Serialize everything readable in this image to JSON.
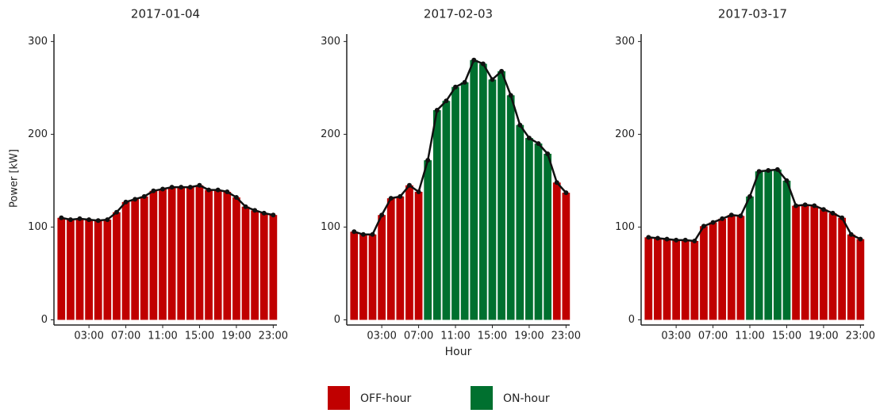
{
  "chart_data": [
    {
      "type": "bar",
      "title": "2017-01-04",
      "y_label": "Power [kW]",
      "categories": [
        null,
        null,
        null,
        "03:00",
        null,
        null,
        null,
        "07:00",
        null,
        null,
        null,
        "11:00",
        null,
        null,
        null,
        "15:00",
        null,
        null,
        null,
        "19:00",
        null,
        null,
        null,
        "23:00"
      ],
      "series": [
        {
          "name": "OFF-hour",
          "color": "#c00000",
          "values": [
            110,
            108,
            109,
            108,
            107,
            108,
            116,
            127,
            130,
            133,
            139,
            141,
            143,
            143,
            143,
            145,
            140,
            140,
            138,
            132,
            122,
            118,
            115,
            113
          ]
        },
        {
          "name": "ON-hour",
          "color": "#00702f",
          "values": [
            null,
            null,
            null,
            null,
            null,
            null,
            null,
            null,
            null,
            null,
            null,
            null,
            null,
            null,
            null,
            null,
            null,
            null,
            null,
            null,
            null,
            null,
            null,
            null
          ]
        }
      ],
      "ylim": [
        -3,
        308
      ],
      "yticks": [
        0,
        100,
        200,
        300
      ]
    },
    {
      "type": "bar",
      "title": "2017-02-03",
      "x_label": "Hour",
      "categories": [
        null,
        null,
        null,
        "03:00",
        null,
        null,
        null,
        "07:00",
        null,
        null,
        null,
        "11:00",
        null,
        null,
        null,
        "15:00",
        null,
        null,
        null,
        "19:00",
        null,
        null,
        null,
        "23:00"
      ],
      "series": [
        {
          "name": "OFF-hour",
          "color": "#c00000",
          "values": [
            95,
            92,
            92,
            113,
            131,
            133,
            145,
            138,
            null,
            null,
            null,
            null,
            null,
            null,
            null,
            null,
            null,
            null,
            null,
            null,
            null,
            null,
            148,
            137
          ]
        },
        {
          "name": "ON-hour",
          "color": "#00702f",
          "values": [
            null,
            null,
            null,
            null,
            null,
            null,
            null,
            null,
            172,
            226,
            236,
            251,
            256,
            280,
            276,
            259,
            268,
            242,
            210,
            196,
            190,
            179,
            null,
            null
          ]
        }
      ],
      "ylim": [
        -3,
        308
      ],
      "yticks": [
        0,
        100,
        200,
        300
      ]
    },
    {
      "type": "bar",
      "title": "2017-03-17",
      "categories": [
        null,
        null,
        null,
        "03:00",
        null,
        null,
        null,
        "07:00",
        null,
        null,
        null,
        "11:00",
        null,
        null,
        null,
        "15:00",
        null,
        null,
        null,
        "19:00",
        null,
        null,
        null,
        "23:00"
      ],
      "series": [
        {
          "name": "OFF-hour",
          "color": "#c00000",
          "values": [
            89,
            88,
            87,
            86,
            86,
            85,
            101,
            105,
            109,
            113,
            112,
            null,
            null,
            null,
            null,
            null,
            123,
            124,
            123,
            119,
            115,
            110,
            92,
            87
          ]
        },
        {
          "name": "ON-hour",
          "color": "#00702f",
          "values": [
            null,
            null,
            null,
            null,
            null,
            null,
            null,
            null,
            null,
            null,
            null,
            133,
            160,
            161,
            162,
            150,
            null,
            null,
            null,
            null,
            null,
            null,
            null,
            null
          ]
        }
      ],
      "ylim": [
        -3,
        308
      ],
      "yticks": [
        0,
        100,
        200,
        300
      ]
    }
  ]
}
